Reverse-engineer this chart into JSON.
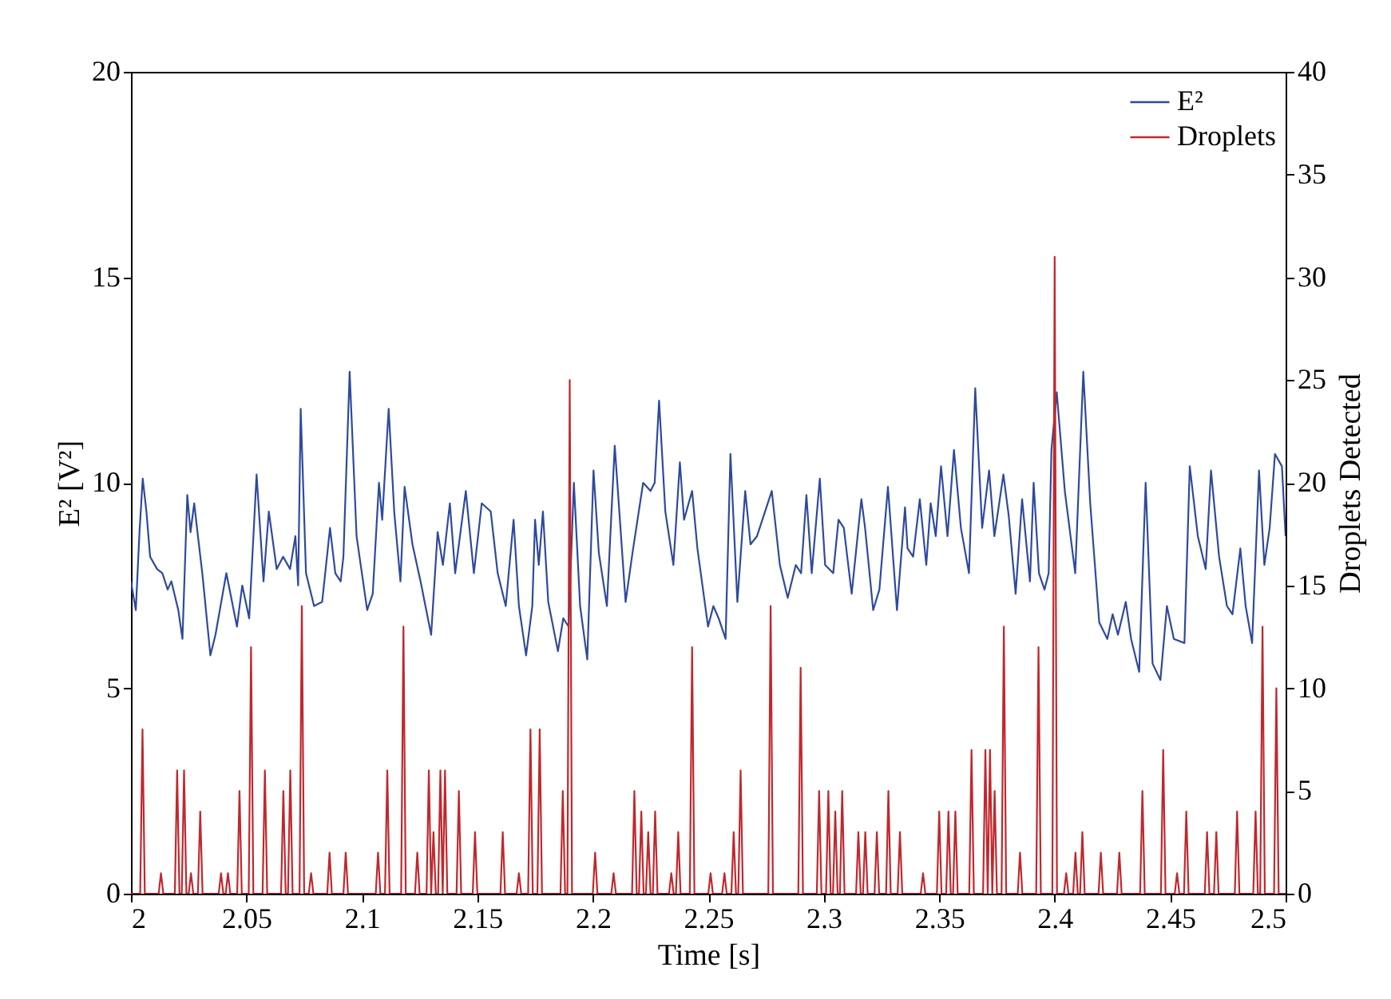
{
  "chart_data": {
    "type": "line",
    "xlabel": "Time [s]",
    "ylabel": "E² [V²]",
    "y2label": "Droplets Detected",
    "xlim": [
      2,
      2.5
    ],
    "xticks": [
      2,
      2.05,
      2.1,
      2.15,
      2.2,
      2.25,
      2.3,
      2.35,
      2.4,
      2.45,
      2.5
    ],
    "ylim": [
      0,
      20
    ],
    "yticks": [
      0,
      5,
      10,
      15,
      20
    ],
    "y2lim": [
      0,
      40
    ],
    "y2ticks": [
      0,
      5,
      10,
      15,
      20,
      25,
      30,
      35,
      40
    ],
    "legend": "top right",
    "grid": false,
    "line_style": "solid",
    "series": [
      {
        "name": "E²",
        "color": "#2e4a9e",
        "x": [
          2.0,
          2.0021,
          2.0037,
          2.0051,
          2.0067,
          2.0083,
          2.0113,
          2.0136,
          2.0159,
          2.0175,
          2.0205,
          2.0223,
          2.0244,
          2.0258,
          2.0274,
          2.029,
          2.0309,
          2.0344,
          2.0366,
          2.0413,
          2.0459,
          2.0482,
          2.0512,
          2.0544,
          2.0574,
          2.0597,
          2.0631,
          2.0659,
          2.0689,
          2.0712,
          2.0724,
          2.0735,
          2.0758,
          2.0793,
          2.0828,
          2.0862,
          2.0885,
          2.0908,
          2.092,
          2.0947,
          2.0977,
          2.1023,
          2.1047,
          2.1074,
          2.1088,
          2.1116,
          2.114,
          2.1167,
          2.1185,
          2.1219,
          2.1254,
          2.13,
          2.1328,
          2.1351,
          2.1381,
          2.1404,
          2.145,
          2.1485,
          2.1519,
          2.1558,
          2.1588,
          2.1623,
          2.1657,
          2.168,
          2.1711,
          2.1738,
          2.175,
          2.1766,
          2.1784,
          2.1807,
          2.1849,
          2.1872,
          2.1895,
          2.1918,
          2.1945,
          2.1976,
          2.2003,
          2.2026,
          2.2061,
          2.2095,
          2.2142,
          2.2172,
          2.2199,
          2.2218,
          2.225,
          2.2268,
          2.2287,
          2.2314,
          2.2349,
          2.2377,
          2.2395,
          2.243,
          2.2453,
          2.2499,
          2.2522,
          2.2545,
          2.2575,
          2.2596,
          2.2626,
          2.266,
          2.2683,
          2.2711,
          2.2775,
          2.281,
          2.2844,
          2.2879,
          2.2902,
          2.2925,
          2.2948,
          2.2983,
          2.3006,
          2.3041,
          2.3064,
          2.3087,
          2.3121,
          2.3163,
          2.3179,
          2.3214,
          2.3241,
          2.3278,
          2.3317,
          2.3352,
          2.3363,
          2.3387,
          2.3416,
          2.3444,
          2.3463,
          2.3485,
          2.3508,
          2.3536,
          2.3564,
          2.3594,
          2.3629,
          2.3656,
          2.3686,
          2.3716,
          2.3739,
          2.3778,
          2.3801,
          2.3831,
          2.3859,
          2.3893,
          2.3909,
          2.3932,
          2.3956,
          2.3974,
          2.3986,
          2.4009,
          2.4044,
          2.4089,
          2.4124,
          2.4154,
          2.4193,
          2.4228,
          2.4251,
          2.4274,
          2.4308,
          2.4331,
          2.4366,
          2.4394,
          2.4424,
          2.4458,
          2.4486,
          2.4516,
          2.4562,
          2.4585,
          2.462,
          2.4654,
          2.4677,
          2.4712,
          2.4746,
          2.477,
          2.4804,
          2.4827,
          2.4855,
          2.4885,
          2.4908,
          2.4931,
          2.4954,
          2.4984,
          2.5
        ],
        "values": [
          7.6,
          6.9,
          8.8,
          10.1,
          9.3,
          8.2,
          7.9,
          7.8,
          7.4,
          7.6,
          6.9,
          6.2,
          9.7,
          8.8,
          9.5,
          8.7,
          7.8,
          5.8,
          6.3,
          7.8,
          6.5,
          7.5,
          6.7,
          10.2,
          7.6,
          9.3,
          7.9,
          8.2,
          7.9,
          8.7,
          7.5,
          11.8,
          7.8,
          7.0,
          7.1,
          8.9,
          7.8,
          7.6,
          8.2,
          12.7,
          8.7,
          6.9,
          7.3,
          10.0,
          9.1,
          11.8,
          9.3,
          7.6,
          9.9,
          8.5,
          7.6,
          6.3,
          8.8,
          8.0,
          9.5,
          7.8,
          9.8,
          7.8,
          9.5,
          9.3,
          7.8,
          7.0,
          9.1,
          7.0,
          5.8,
          7.0,
          9.1,
          8.0,
          9.3,
          7.1,
          5.9,
          6.7,
          6.5,
          10.0,
          7.0,
          5.7,
          10.3,
          8.3,
          7.0,
          10.9,
          7.1,
          8.3,
          9.3,
          10.0,
          9.8,
          10.0,
          12.0,
          9.3,
          8.0,
          10.5,
          9.1,
          9.8,
          8.4,
          6.5,
          7.0,
          6.7,
          6.2,
          10.7,
          7.1,
          9.8,
          8.5,
          8.7,
          9.8,
          8.0,
          7.2,
          8.0,
          7.8,
          9.7,
          7.8,
          10.1,
          8.0,
          7.8,
          9.1,
          8.9,
          7.3,
          9.6,
          8.9,
          6.9,
          7.4,
          9.9,
          6.9,
          9.4,
          8.4,
          8.2,
          9.6,
          8.0,
          9.5,
          8.7,
          10.4,
          8.7,
          10.8,
          8.9,
          7.8,
          12.3,
          8.9,
          10.3,
          8.7,
          10.2,
          9.2,
          7.3,
          9.6,
          7.6,
          10.0,
          7.8,
          7.4,
          7.8,
          10.8,
          12.2,
          9.8,
          7.8,
          12.7,
          9.5,
          6.6,
          6.2,
          6.8,
          6.3,
          7.1,
          6.2,
          5.4,
          10.0,
          5.6,
          5.2,
          7.0,
          6.2,
          6.1,
          10.4,
          8.7,
          7.9,
          10.3,
          8.2,
          7.0,
          6.8,
          8.4,
          7.0,
          6.1,
          10.3,
          8.0,
          8.9,
          10.7,
          10.4,
          8.7
        ]
      },
      {
        "name": "Droplets",
        "color": "#c0282d",
        "axis": "y2",
        "x": [
          2.0,
          2.004,
          2.005,
          2.006,
          2.012,
          2.013,
          2.014,
          2.019,
          2.02,
          2.021,
          2.022,
          2.023,
          2.024,
          2.025,
          2.026,
          2.027,
          2.029,
          2.03,
          2.031,
          2.038,
          2.039,
          2.04,
          2.041,
          2.042,
          2.043,
          2.046,
          2.047,
          2.048,
          2.051,
          2.052,
          2.053,
          2.057,
          2.058,
          2.059,
          2.065,
          2.066,
          2.067,
          2.068,
          2.069,
          2.07,
          2.073,
          2.074,
          2.075,
          2.077,
          2.078,
          2.079,
          2.085,
          2.086,
          2.087,
          2.092,
          2.093,
          2.094,
          2.106,
          2.107,
          2.108,
          2.11,
          2.111,
          2.112,
          2.117,
          2.118,
          2.119,
          2.123,
          2.124,
          2.125,
          2.128,
          2.129,
          2.13,
          2.13,
          2.131,
          2.132,
          2.133,
          2.134,
          2.135,
          2.135,
          2.136,
          2.137,
          2.141,
          2.142,
          2.143,
          2.148,
          2.149,
          2.15,
          2.16,
          2.161,
          2.162,
          2.167,
          2.168,
          2.169,
          2.172,
          2.173,
          2.174,
          2.176,
          2.177,
          2.178,
          2.186,
          2.187,
          2.188,
          2.189,
          2.19,
          2.191,
          2.2,
          2.201,
          2.202,
          2.208,
          2.209,
          2.21,
          2.217,
          2.218,
          2.219,
          2.22,
          2.221,
          2.222,
          2.223,
          2.224,
          2.225,
          2.226,
          2.227,
          2.228,
          2.233,
          2.234,
          2.235,
          2.236,
          2.237,
          2.238,
          2.242,
          2.243,
          2.244,
          2.25,
          2.251,
          2.252,
          2.256,
          2.257,
          2.258,
          2.26,
          2.261,
          2.262,
          2.263,
          2.264,
          2.265,
          2.276,
          2.277,
          2.278,
          2.289,
          2.29,
          2.291,
          2.297,
          2.298,
          2.299,
          2.301,
          2.302,
          2.303,
          2.304,
          2.305,
          2.306,
          2.307,
          2.308,
          2.309,
          2.314,
          2.315,
          2.316,
          2.317,
          2.318,
          2.319,
          2.322,
          2.323,
          2.324,
          2.327,
          2.328,
          2.329,
          2.332,
          2.333,
          2.334,
          2.342,
          2.343,
          2.344,
          2.349,
          2.35,
          2.351,
          2.353,
          2.354,
          2.355,
          2.356,
          2.357,
          2.358,
          2.363,
          2.364,
          2.365,
          2.369,
          2.37,
          2.371,
          2.371,
          2.372,
          2.373,
          2.373,
          2.374,
          2.375,
          2.377,
          2.378,
          2.379,
          2.384,
          2.385,
          2.386,
          2.392,
          2.393,
          2.394,
          2.399,
          2.4,
          2.401,
          2.404,
          2.405,
          2.406,
          2.408,
          2.409,
          2.41,
          2.411,
          2.412,
          2.413,
          2.419,
          2.42,
          2.421,
          2.427,
          2.428,
          2.429,
          2.437,
          2.438,
          2.439,
          2.446,
          2.447,
          2.448,
          2.452,
          2.453,
          2.454,
          2.456,
          2.457,
          2.458,
          2.465,
          2.466,
          2.467,
          2.469,
          2.47,
          2.471,
          2.478,
          2.479,
          2.48,
          2.486,
          2.487,
          2.488,
          2.489,
          2.49,
          2.491,
          2.495,
          2.496,
          2.497,
          2.5
        ],
        "values": [
          0,
          0,
          8,
          0,
          0,
          1,
          0,
          0,
          6,
          0,
          0,
          6,
          0,
          0,
          1,
          0,
          0,
          4,
          0,
          0,
          1,
          0,
          0,
          1,
          0,
          0,
          5,
          0,
          0,
          12,
          0,
          0,
          6,
          0,
          0,
          5,
          0,
          0,
          6,
          0,
          0,
          14,
          0,
          0,
          1,
          0,
          0,
          2,
          0,
          0,
          2,
          0,
          0,
          2,
          0,
          0,
          6,
          0,
          0,
          13,
          0,
          0,
          2,
          0,
          0,
          6,
          0,
          0,
          3,
          0,
          0,
          6,
          0,
          0,
          6,
          0,
          0,
          5,
          0,
          0,
          3,
          0,
          0,
          3,
          0,
          0,
          1,
          0,
          0,
          8,
          0,
          0,
          8,
          0,
          0,
          5,
          0,
          0,
          25,
          0,
          0,
          2,
          0,
          0,
          1,
          0,
          0,
          5,
          0,
          0,
          4,
          0,
          0,
          3,
          0,
          0,
          4,
          0,
          0,
          1,
          0,
          0,
          3,
          0,
          0,
          12,
          0,
          0,
          1,
          0,
          0,
          1,
          0,
          0,
          3,
          0,
          0,
          6,
          0,
          0,
          14,
          0,
          0,
          11,
          0,
          0,
          5,
          0,
          0,
          5,
          0,
          0,
          4,
          0,
          0,
          5,
          0,
          0,
          3,
          0,
          0,
          3,
          0,
          0,
          3,
          0,
          0,
          5,
          0,
          0,
          3,
          0,
          0,
          1,
          0,
          0,
          4,
          0,
          0,
          4,
          0,
          0,
          4,
          0,
          0,
          7,
          0,
          0,
          7,
          0,
          0,
          7,
          0,
          0,
          5,
          0,
          0,
          13,
          0,
          0,
          2,
          0,
          0,
          12,
          0,
          0,
          31,
          0,
          0,
          1,
          0,
          0,
          2,
          0,
          0,
          3,
          0,
          0,
          2,
          0,
          0,
          2,
          0,
          0,
          5,
          0,
          0,
          7,
          0,
          0,
          1,
          0,
          0,
          4,
          0,
          0,
          3,
          0,
          0,
          3,
          0,
          0,
          4,
          0,
          0,
          4,
          0,
          0,
          13,
          0,
          0,
          10,
          0,
          0
        ]
      }
    ]
  }
}
